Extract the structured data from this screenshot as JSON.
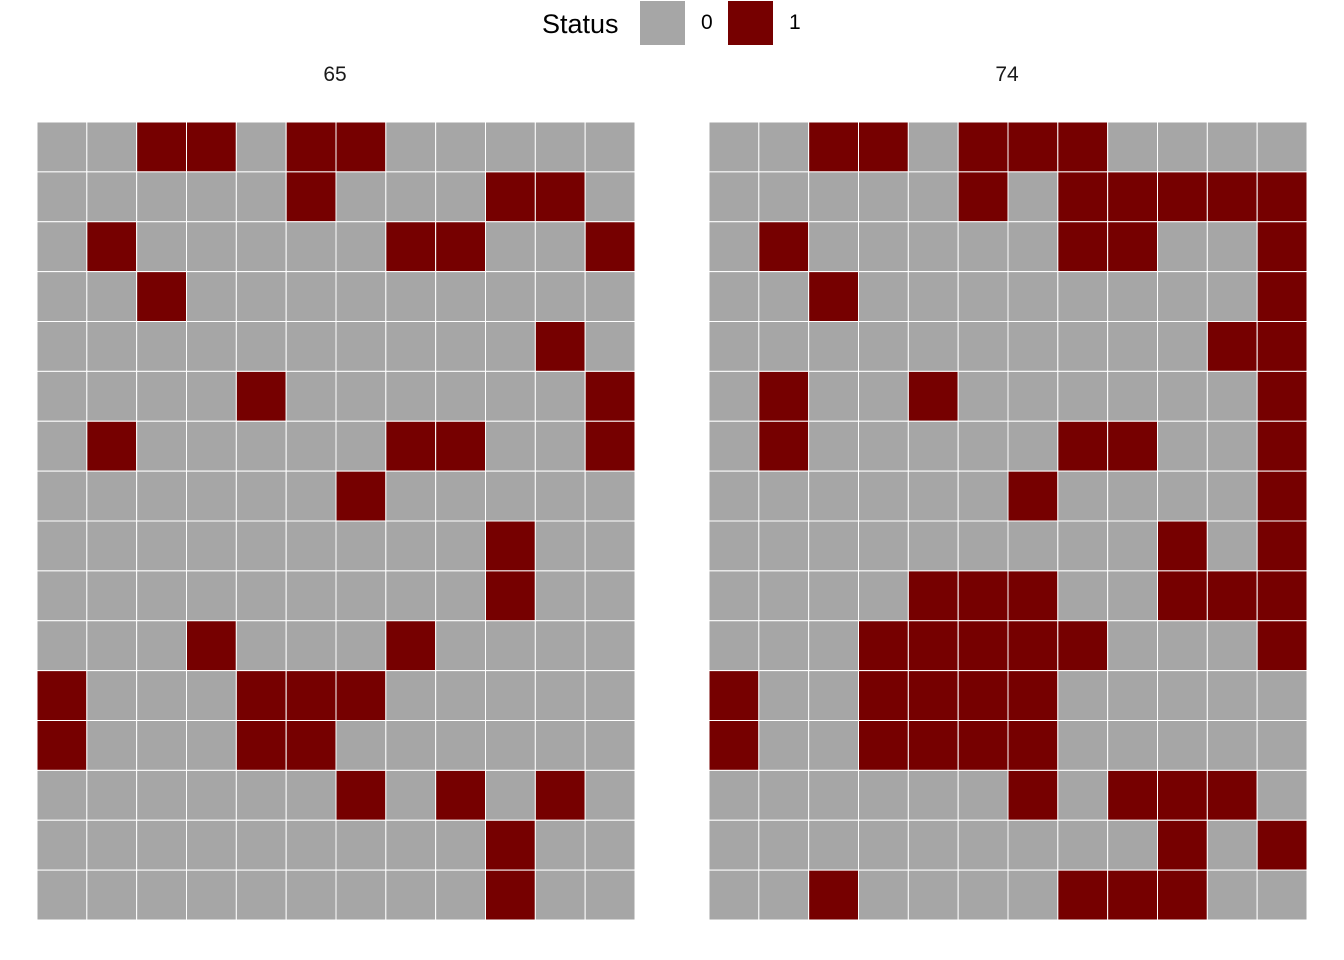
{
  "legend": {
    "title": "Status",
    "items": [
      {
        "label": "0",
        "color": "#A6A6A6"
      },
      {
        "label": "1",
        "color": "#760000"
      }
    ]
  },
  "chart_data": {
    "type": "heatmap",
    "facet_titles": [
      "65",
      "74"
    ],
    "columns": 12,
    "rows": 16,
    "colors": {
      "0": "#A6A6A6",
      "1": "#760000",
      "grid": "#FFFFFF"
    },
    "panels": [
      {
        "title": "65",
        "grid": [
          [
            0,
            0,
            1,
            1,
            0,
            1,
            1,
            0,
            0,
            0,
            0,
            0
          ],
          [
            0,
            0,
            0,
            0,
            0,
            1,
            0,
            0,
            0,
            1,
            1,
            0
          ],
          [
            0,
            1,
            0,
            0,
            0,
            0,
            0,
            1,
            1,
            0,
            0,
            1
          ],
          [
            0,
            0,
            1,
            0,
            0,
            0,
            0,
            0,
            0,
            0,
            0,
            0
          ],
          [
            0,
            0,
            0,
            0,
            0,
            0,
            0,
            0,
            0,
            0,
            1,
            0
          ],
          [
            0,
            0,
            0,
            0,
            1,
            0,
            0,
            0,
            0,
            0,
            0,
            1
          ],
          [
            0,
            1,
            0,
            0,
            0,
            0,
            0,
            1,
            1,
            0,
            0,
            1
          ],
          [
            0,
            0,
            0,
            0,
            0,
            0,
            1,
            0,
            0,
            0,
            0,
            0
          ],
          [
            0,
            0,
            0,
            0,
            0,
            0,
            0,
            0,
            0,
            1,
            0,
            0
          ],
          [
            0,
            0,
            0,
            0,
            0,
            0,
            0,
            0,
            0,
            1,
            0,
            0
          ],
          [
            0,
            0,
            0,
            1,
            0,
            0,
            0,
            1,
            0,
            0,
            0,
            0
          ],
          [
            1,
            0,
            0,
            0,
            1,
            1,
            1,
            0,
            0,
            0,
            0,
            0
          ],
          [
            1,
            0,
            0,
            0,
            1,
            1,
            0,
            0,
            0,
            0,
            0,
            0
          ],
          [
            0,
            0,
            0,
            0,
            0,
            0,
            1,
            0,
            1,
            0,
            1,
            0
          ],
          [
            0,
            0,
            0,
            0,
            0,
            0,
            0,
            0,
            0,
            1,
            0,
            0
          ],
          [
            0,
            0,
            0,
            0,
            0,
            0,
            0,
            0,
            0,
            1,
            0,
            0
          ]
        ]
      },
      {
        "title": "74",
        "grid": [
          [
            0,
            0,
            1,
            1,
            0,
            1,
            1,
            1,
            0,
            0,
            0,
            0
          ],
          [
            0,
            0,
            0,
            0,
            0,
            1,
            0,
            1,
            1,
            1,
            1,
            1
          ],
          [
            0,
            1,
            0,
            0,
            0,
            0,
            0,
            1,
            1,
            0,
            0,
            1
          ],
          [
            0,
            0,
            1,
            0,
            0,
            0,
            0,
            0,
            0,
            0,
            0,
            1
          ],
          [
            0,
            0,
            0,
            0,
            0,
            0,
            0,
            0,
            0,
            0,
            1,
            1
          ],
          [
            0,
            1,
            0,
            0,
            1,
            0,
            0,
            0,
            0,
            0,
            0,
            1
          ],
          [
            0,
            1,
            0,
            0,
            0,
            0,
            0,
            1,
            1,
            0,
            0,
            1
          ],
          [
            0,
            0,
            0,
            0,
            0,
            0,
            1,
            0,
            0,
            0,
            0,
            1
          ],
          [
            0,
            0,
            0,
            0,
            0,
            0,
            0,
            0,
            0,
            1,
            0,
            1
          ],
          [
            0,
            0,
            0,
            0,
            1,
            1,
            1,
            0,
            0,
            1,
            1,
            1
          ],
          [
            0,
            0,
            0,
            1,
            1,
            1,
            1,
            1,
            0,
            0,
            0,
            1
          ],
          [
            1,
            0,
            0,
            1,
            1,
            1,
            1,
            0,
            0,
            0,
            0,
            0
          ],
          [
            1,
            0,
            0,
            1,
            1,
            1,
            1,
            0,
            0,
            0,
            0,
            0
          ],
          [
            0,
            0,
            0,
            0,
            0,
            0,
            1,
            0,
            1,
            1,
            1,
            0
          ],
          [
            0,
            0,
            0,
            0,
            0,
            0,
            0,
            0,
            0,
            1,
            0,
            1
          ],
          [
            0,
            0,
            1,
            0,
            0,
            0,
            0,
            1,
            1,
            1,
            0,
            0
          ]
        ]
      }
    ]
  }
}
